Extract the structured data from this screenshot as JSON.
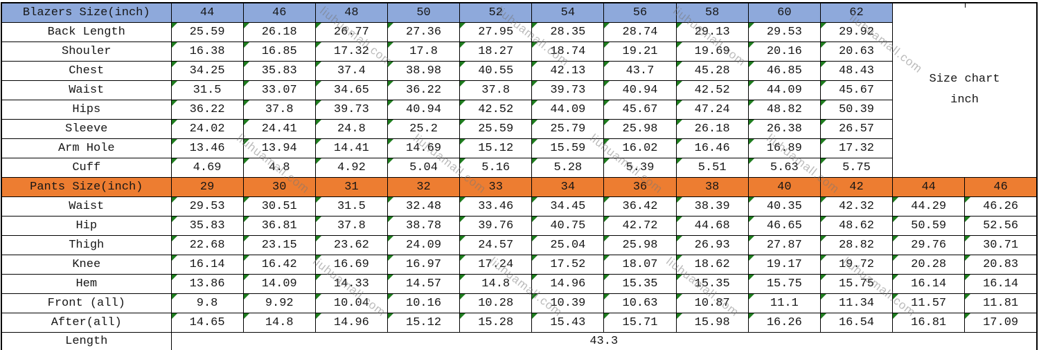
{
  "side_note": {
    "line1": "Size chart",
    "line2": "inch"
  },
  "watermark": {
    "text": "liuhuamall.com"
  },
  "colors": {
    "blazers_header_bg": "#8ea9db",
    "pants_header_bg": "#ed7d31",
    "grid_border": "#000000",
    "cell_flag_green": "#1f7d1f",
    "text": "#161616"
  },
  "chart_data": [
    {
      "type": "table",
      "title": "Blazers Size(inch)",
      "columns": [
        "44",
        "46",
        "48",
        "50",
        "52",
        "54",
        "56",
        "58",
        "60",
        "62"
      ],
      "rows": [
        {
          "label": "Back Length",
          "values": [
            "25.59",
            "26.18",
            "26.77",
            "27.36",
            "27.95",
            "28.35",
            "28.74",
            "29.13",
            "29.53",
            "29.92"
          ]
        },
        {
          "label": "Shouler",
          "values": [
            "16.38",
            "16.85",
            "17.32",
            "17.8",
            "18.27",
            "18.74",
            "19.21",
            "19.69",
            "20.16",
            "20.63"
          ]
        },
        {
          "label": "Chest",
          "values": [
            "34.25",
            "35.83",
            "37.4",
            "38.98",
            "40.55",
            "42.13",
            "43.7",
            "45.28",
            "46.85",
            "48.43"
          ]
        },
        {
          "label": "Waist",
          "values": [
            "31.5",
            "33.07",
            "34.65",
            "36.22",
            "37.8",
            "39.73",
            "40.94",
            "42.52",
            "44.09",
            "45.67"
          ]
        },
        {
          "label": "Hips",
          "values": [
            "36.22",
            "37.8",
            "39.73",
            "40.94",
            "42.52",
            "44.09",
            "45.67",
            "47.24",
            "48.82",
            "50.39"
          ]
        },
        {
          "label": "Sleeve",
          "values": [
            "24.02",
            "24.41",
            "24.8",
            "25.2",
            "25.59",
            "25.79",
            "25.98",
            "26.18",
            "26.38",
            "26.57"
          ]
        },
        {
          "label": "Arm Hole",
          "values": [
            "13.46",
            "13.94",
            "14.41",
            "14.69",
            "15.12",
            "15.59",
            "16.02",
            "16.46",
            "16.89",
            "17.32"
          ]
        },
        {
          "label": "Cuff",
          "values": [
            "4.69",
            "4.8",
            "4.92",
            "5.04",
            "5.16",
            "5.28",
            "5.39",
            "5.51",
            "5.63",
            "5.75"
          ]
        }
      ]
    },
    {
      "type": "table",
      "title": "Pants Size(inch)",
      "columns": [
        "29",
        "30",
        "31",
        "32",
        "33",
        "34",
        "36",
        "38",
        "40",
        "42",
        "44",
        "46"
      ],
      "rows": [
        {
          "label": "Waist",
          "values": [
            "29.53",
            "30.51",
            "31.5",
            "32.48",
            "33.46",
            "34.45",
            "36.42",
            "38.39",
            "40.35",
            "42.32",
            "44.29",
            "46.26"
          ]
        },
        {
          "label": "Hip",
          "values": [
            "35.83",
            "36.81",
            "37.8",
            "38.78",
            "39.76",
            "40.75",
            "42.72",
            "44.68",
            "46.65",
            "48.62",
            "50.59",
            "52.56"
          ]
        },
        {
          "label": "Thigh",
          "values": [
            "22.68",
            "23.15",
            "23.62",
            "24.09",
            "24.57",
            "25.04",
            "25.98",
            "26.93",
            "27.87",
            "28.82",
            "29.76",
            "30.71"
          ]
        },
        {
          "label": "Knee",
          "values": [
            "16.14",
            "16.42",
            "16.69",
            "16.97",
            "17.24",
            "17.52",
            "18.07",
            "18.62",
            "19.17",
            "19.72",
            "20.28",
            "20.83"
          ]
        },
        {
          "label": "Hem",
          "values": [
            "13.86",
            "14.09",
            "14.33",
            "14.57",
            "14.8",
            "14.96",
            "15.35",
            "15.35",
            "15.75",
            "15.75",
            "16.14",
            "16.14"
          ]
        },
        {
          "label": "Front (all)",
          "values": [
            "9.8",
            "9.92",
            "10.04",
            "10.16",
            "10.28",
            "10.39",
            "10.63",
            "10.87",
            "11.1",
            "11.34",
            "11.57",
            "11.81"
          ]
        },
        {
          "label": "After(all)",
          "values": [
            "14.65",
            "14.8",
            "14.96",
            "15.12",
            "15.28",
            "15.43",
            "15.71",
            "15.98",
            "16.26",
            "16.54",
            "16.81",
            "17.09"
          ]
        }
      ],
      "footer": {
        "label": "Length",
        "value": "43.3"
      }
    }
  ]
}
